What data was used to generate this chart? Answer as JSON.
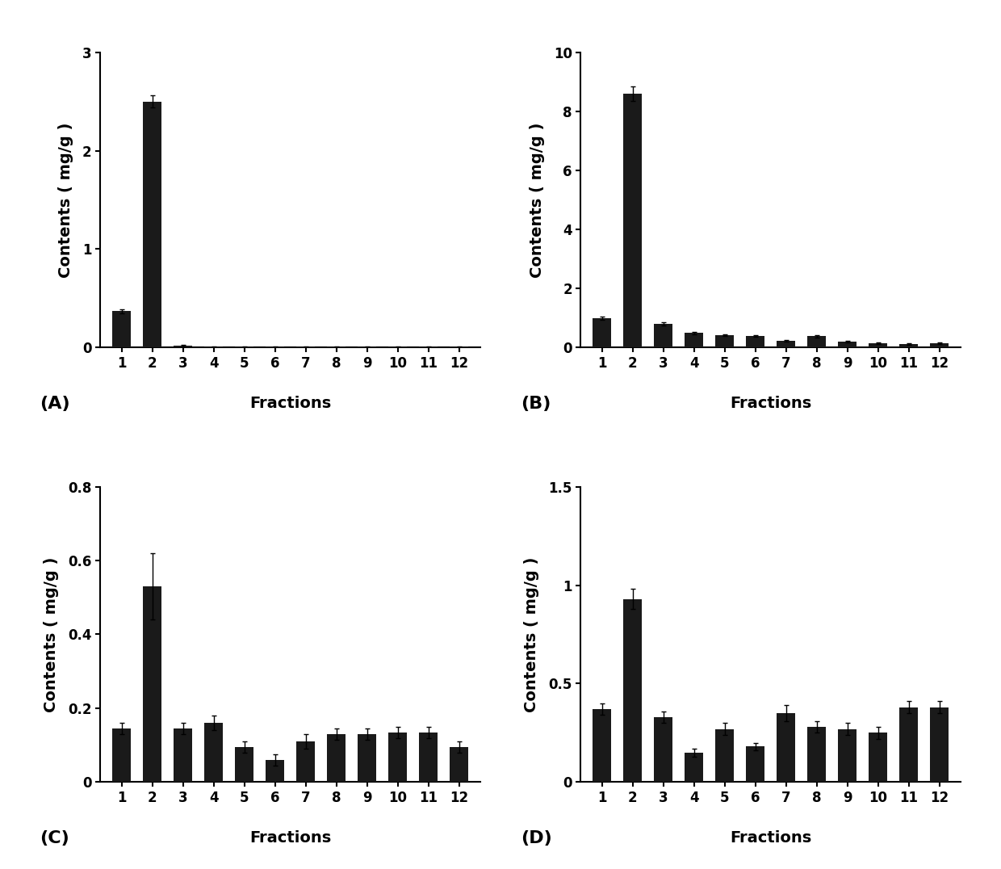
{
  "panels": {
    "A": {
      "values": [
        0.37,
        2.5,
        0.02,
        0.01,
        0.01,
        0.01,
        0.01,
        0.01,
        0.01,
        0.01,
        0.01,
        0.01
      ],
      "errors": [
        0.02,
        0.06,
        0.005,
        0.005,
        0.005,
        0.005,
        0.005,
        0.005,
        0.005,
        0.005,
        0.005,
        0.005
      ],
      "ylim": [
        0,
        3.0
      ],
      "yticks": [
        0,
        1,
        2,
        3
      ],
      "label": "(A)"
    },
    "B": {
      "values": [
        1.0,
        8.6,
        0.8,
        0.5,
        0.42,
        0.4,
        0.22,
        0.38,
        0.2,
        0.15,
        0.12,
        0.15
      ],
      "errors": [
        0.05,
        0.25,
        0.06,
        0.04,
        0.04,
        0.03,
        0.03,
        0.04,
        0.02,
        0.02,
        0.02,
        0.02
      ],
      "ylim": [
        0,
        10.0
      ],
      "yticks": [
        0,
        2,
        4,
        6,
        8,
        10
      ],
      "label": "(B)"
    },
    "C": {
      "values": [
        0.145,
        0.53,
        0.145,
        0.16,
        0.095,
        0.06,
        0.11,
        0.13,
        0.13,
        0.135,
        0.135,
        0.095
      ],
      "errors": [
        0.015,
        0.09,
        0.015,
        0.02,
        0.015,
        0.015,
        0.02,
        0.015,
        0.015,
        0.015,
        0.015,
        0.015
      ],
      "ylim": [
        0,
        0.8
      ],
      "yticks": [
        0.0,
        0.2,
        0.4,
        0.6,
        0.8
      ],
      "label": "(C)"
    },
    "D": {
      "values": [
        0.37,
        0.93,
        0.33,
        0.15,
        0.27,
        0.18,
        0.35,
        0.28,
        0.27,
        0.25,
        0.38,
        0.38
      ],
      "errors": [
        0.03,
        0.05,
        0.03,
        0.02,
        0.03,
        0.02,
        0.04,
        0.03,
        0.03,
        0.03,
        0.03,
        0.03
      ],
      "ylim": [
        0,
        1.5
      ],
      "yticks": [
        0.0,
        0.5,
        1.0,
        1.5
      ],
      "label": "(D)"
    }
  },
  "fractions": [
    "1",
    "2",
    "3",
    "4",
    "5",
    "6",
    "7",
    "8",
    "9",
    "10",
    "11",
    "12"
  ],
  "bar_color": "#1a1a1a",
  "xlabel": "Fractions",
  "ylabel": "Contents ( mg/g )",
  "bar_width": 0.6,
  "background_color": "#ffffff",
  "panel_order": [
    "A",
    "B",
    "C",
    "D"
  ],
  "label_fontsize": 16,
  "tick_fontsize": 12,
  "axis_label_fontsize": 14
}
